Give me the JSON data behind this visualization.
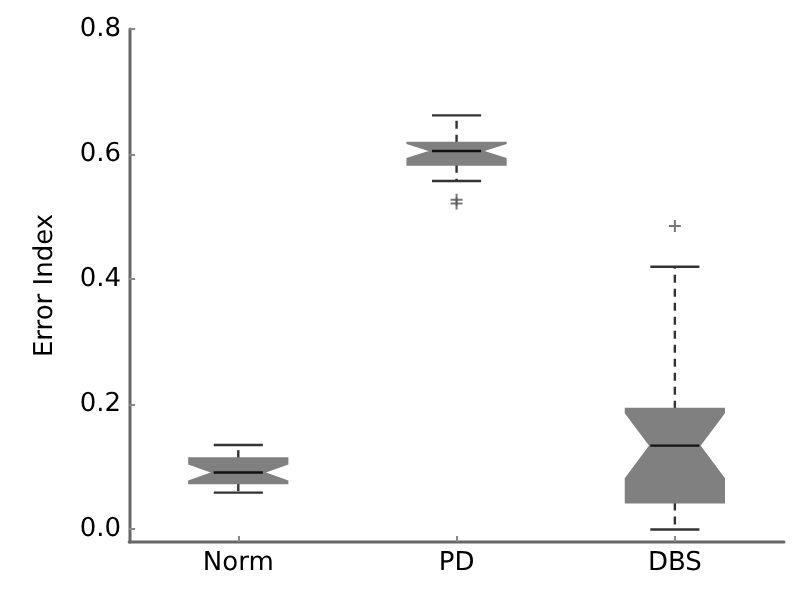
{
  "chart_data": {
    "type": "box",
    "ylabel": "Error Index",
    "categories": [
      "Norm",
      "PD",
      "DBS"
    ],
    "color": "#808080",
    "boxes": [
      {
        "low": 0.059,
        "q1": 0.074,
        "median": 0.091,
        "q3": 0.114,
        "high": 0.135
      },
      {
        "low": 0.557,
        "q1": 0.583,
        "median": 0.605,
        "q3": 0.618,
        "high": 0.662,
        "outliers": [
          0.527,
          0.521
        ]
      },
      {
        "low": 0.0,
        "q1": 0.043,
        "median": 0.134,
        "q3": 0.193,
        "high": 0.42,
        "outliers": [
          0.485
        ]
      }
    ],
    "ylim": [
      -0.02,
      0.8
    ],
    "yticks": [
      {
        "value": 0,
        "label": "0.0"
      },
      {
        "value": 0.2,
        "label": "0.2"
      },
      {
        "value": 0.4,
        "label": "0.4"
      },
      {
        "value": 0.6,
        "label": "0.6"
      },
      {
        "value": 0.8,
        "label": "0.8"
      }
    ],
    "grid": false,
    "line_style": "dashed",
    "marker": "cross"
  }
}
